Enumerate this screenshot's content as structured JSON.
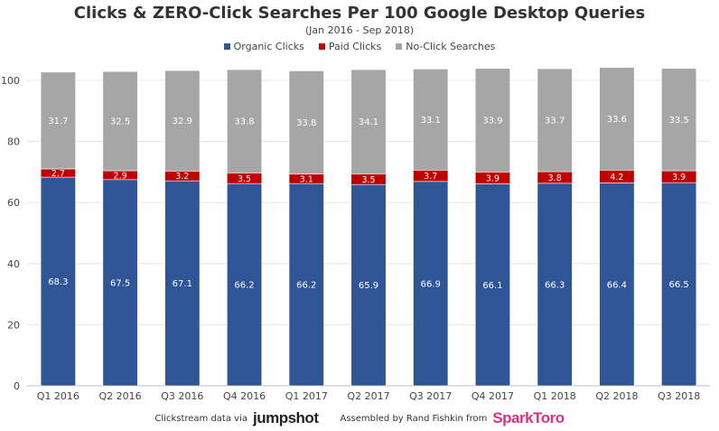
{
  "chart_data": {
    "type": "bar",
    "stacked": true,
    "title": "Clicks & ZERO-Click Searches Per 100 Google Desktop Queries",
    "subtitle": "(Jan 2016 - Sep 2018)",
    "categories": [
      "Q1 2016",
      "Q2 2016",
      "Q3 2016",
      "Q4 2016",
      "Q1 2017",
      "Q2 2017",
      "Q3 2017",
      "Q4 2017",
      "Q1 2018",
      "Q2 2018",
      "Q3 2018"
    ],
    "series": [
      {
        "name": "Organic Clicks",
        "color": "#2f5597",
        "values": [
          68.3,
          67.5,
          67.1,
          66.2,
          66.2,
          65.9,
          66.9,
          66.1,
          66.3,
          66.4,
          66.5
        ]
      },
      {
        "name": "Paid Clicks",
        "color": "#c00000",
        "values": [
          2.7,
          2.9,
          3.2,
          3.5,
          3.1,
          3.5,
          3.7,
          3.9,
          3.8,
          4.2,
          3.9
        ]
      },
      {
        "name": "No-Click Searches",
        "color": "#a6a6a6",
        "values": [
          31.7,
          32.5,
          32.9,
          33.8,
          33.8,
          34.1,
          33.1,
          33.9,
          33.7,
          33.6,
          33.5
        ]
      }
    ],
    "yticks": [
      0,
      20,
      40,
      60,
      80,
      100
    ],
    "ylim": [
      0,
      105
    ],
    "grid": true,
    "legend": "top-center"
  },
  "footer": {
    "clickstream_text": "Clickstream data via",
    "clickstream_brand": "jumpshot",
    "assembled_text": "Assembled by Rand Fishkin from",
    "assembled_brand": "SparkToro"
  }
}
